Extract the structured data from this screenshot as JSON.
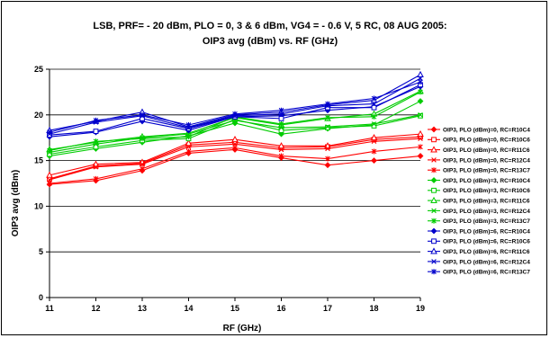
{
  "chart_data": {
    "type": "line",
    "title": "LSB, PRF= - 20 dBm, PLO = 0, 3 & 6 dBm, VG4 = - 0.6 V, 5 RC, 08 AUG 2005:",
    "subtitle": "OIP3 avg (dBm) vs. RF (GHz)",
    "xlabel": "RF (GHz)",
    "ylabel": "OIP3 avg (dBm)",
    "xlim": [
      11,
      19
    ],
    "ylim": [
      0,
      25
    ],
    "x_ticks": [
      11,
      12,
      13,
      14,
      15,
      16,
      17,
      18,
      19
    ],
    "y_ticks": [
      0,
      5,
      10,
      15,
      20,
      25
    ],
    "grid": "horizontal",
    "legend_position": "right",
    "x": [
      11,
      12,
      13,
      14,
      15,
      16,
      17,
      18,
      19
    ],
    "series": [
      {
        "name": "OIP3, PLO (dBm)=0, RC=R10C4",
        "color": "#ff0000",
        "marker": "diamond",
        "values": [
          12.4,
          12.8,
          13.9,
          15.8,
          16.2,
          15.3,
          14.5,
          15.0,
          15.5
        ]
      },
      {
        "name": "OIP3, PLO (dBm)=0, RC=R10C6",
        "color": "#ff0000",
        "marker": "square",
        "values": [
          13.0,
          14.4,
          14.7,
          16.7,
          17.0,
          16.4,
          16.5,
          17.3,
          17.6
        ]
      },
      {
        "name": "OIP3, PLO (dBm)=0, RC=R11C6",
        "color": "#ff0000",
        "marker": "triangle",
        "values": [
          13.4,
          14.6,
          14.8,
          16.9,
          17.3,
          16.6,
          16.6,
          17.5,
          17.9
        ]
      },
      {
        "name": "OIP3, PLO (dBm)=0, RC=R12C4",
        "color": "#ff0000",
        "marker": "x",
        "values": [
          12.9,
          14.3,
          14.6,
          16.5,
          16.8,
          16.2,
          16.3,
          17.1,
          17.4
        ]
      },
      {
        "name": "OIP3, PLO (dBm)=0, RC=R13C7",
        "color": "#ff0000",
        "marker": "star",
        "values": [
          12.5,
          13.0,
          14.1,
          16.0,
          16.4,
          15.5,
          15.2,
          16.0,
          16.5
        ]
      },
      {
        "name": "OIP3, PLO (dBm)=3, RC=R10C4",
        "color": "#00cc00",
        "marker": "diamond",
        "values": [
          15.5,
          16.3,
          17.0,
          17.7,
          19.1,
          17.9,
          18.5,
          18.9,
          21.5
        ]
      },
      {
        "name": "OIP3, PLO (dBm)=3, RC=R10C6",
        "color": "#00cc00",
        "marker": "square",
        "values": [
          15.7,
          16.5,
          17.2,
          17.4,
          19.5,
          18.3,
          18.6,
          18.8,
          19.9
        ]
      },
      {
        "name": "OIP3, PLO (dBm)=3, RC=R11C6",
        "color": "#00cc00",
        "marker": "triangle",
        "values": [
          16.2,
          17.0,
          17.6,
          18.0,
          19.7,
          18.9,
          19.6,
          20.1,
          22.6
        ]
      },
      {
        "name": "OIP3, PLO (dBm)=3, RC=R12C4",
        "color": "#00cc00",
        "marker": "x",
        "values": [
          15.9,
          16.8,
          17.5,
          17.9,
          19.4,
          18.6,
          18.7,
          19.0,
          20.0
        ]
      },
      {
        "name": "OIP3, PLO (dBm)=3, RC=R13C7",
        "color": "#00cc00",
        "marker": "star",
        "values": [
          16.1,
          17.1,
          17.4,
          17.6,
          19.8,
          19.0,
          19.7,
          19.8,
          22.5
        ]
      },
      {
        "name": "OIP3, PLO (dBm)=6, RC=R10C4",
        "color": "#0000cc",
        "marker": "diamond",
        "values": [
          17.6,
          18.1,
          19.3,
          18.3,
          19.8,
          19.9,
          20.5,
          20.9,
          23.1
        ]
      },
      {
        "name": "OIP3, PLO (dBm)=6, RC=R10C6",
        "color": "#0000cc",
        "marker": "square",
        "values": [
          17.8,
          18.2,
          19.6,
          18.5,
          19.8,
          19.6,
          20.8,
          20.8,
          23.3
        ]
      },
      {
        "name": "OIP3, PLO (dBm)=6, RC=R11C6",
        "color": "#0000cc",
        "marker": "triangle",
        "values": [
          18.3,
          19.3,
          20.3,
          18.7,
          20.0,
          20.3,
          21.1,
          21.6,
          24.4
        ]
      },
      {
        "name": "OIP3, PLO (dBm)=6, RC=R12C4",
        "color": "#0000cc",
        "marker": "x",
        "values": [
          17.9,
          19.2,
          19.9,
          18.6,
          19.9,
          20.1,
          21.0,
          21.2,
          24.0
        ]
      },
      {
        "name": "OIP3, PLO (dBm)=6, RC=R13C7",
        "color": "#0000cc",
        "marker": "star",
        "values": [
          18.1,
          19.4,
          20.0,
          18.9,
          20.1,
          20.5,
          21.2,
          21.8,
          23.6
        ]
      }
    ]
  }
}
